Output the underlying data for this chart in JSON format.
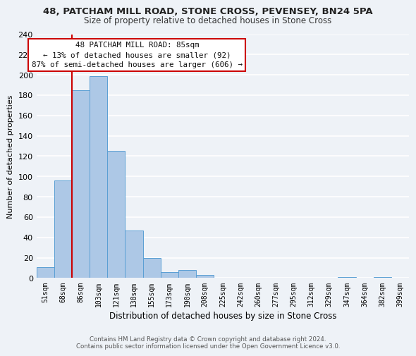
{
  "title1": "48, PATCHAM MILL ROAD, STONE CROSS, PEVENSEY, BN24 5PA",
  "title2": "Size of property relative to detached houses in Stone Cross",
  "xlabel": "Distribution of detached houses by size in Stone Cross",
  "ylabel": "Number of detached properties",
  "bin_labels": [
    "51sqm",
    "68sqm",
    "86sqm",
    "103sqm",
    "121sqm",
    "138sqm",
    "155sqm",
    "173sqm",
    "190sqm",
    "208sqm",
    "225sqm",
    "242sqm",
    "260sqm",
    "277sqm",
    "295sqm",
    "312sqm",
    "329sqm",
    "347sqm",
    "364sqm",
    "382sqm",
    "399sqm"
  ],
  "bar_heights": [
    11,
    96,
    185,
    199,
    125,
    47,
    20,
    6,
    8,
    3,
    0,
    0,
    0,
    0,
    0,
    0,
    0,
    1,
    0,
    1,
    0
  ],
  "bar_color": "#adc8e6",
  "bar_edge_color": "#5a9fd4",
  "highlight_color": "#cc0000",
  "highlight_bar_idx": 2,
  "ylim": [
    0,
    240
  ],
  "yticks": [
    0,
    20,
    40,
    60,
    80,
    100,
    120,
    140,
    160,
    180,
    200,
    220,
    240
  ],
  "annotation_title": "48 PATCHAM MILL ROAD: 85sqm",
  "annotation_line1": "← 13% of detached houses are smaller (92)",
  "annotation_line2": "87% of semi-detached houses are larger (606) →",
  "annotation_box_color": "#ffffff",
  "annotation_box_edge": "#cc0000",
  "footer1": "Contains HM Land Registry data © Crown copyright and database right 2024.",
  "footer2": "Contains public sector information licensed under the Open Government Licence v3.0.",
  "bg_color": "#eef2f7"
}
